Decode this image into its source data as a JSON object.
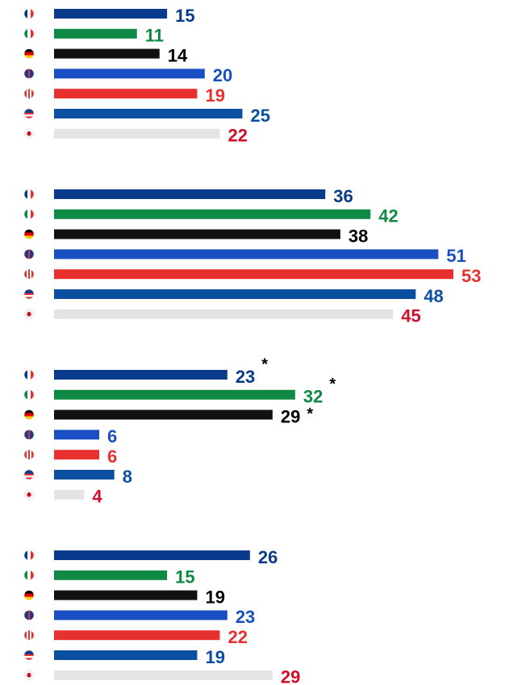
{
  "chart_data": [
    {
      "type": "bar",
      "categories": [
        null,
        null,
        null,
        null,
        null,
        null,
        null
      ],
      "values": [
        15,
        11,
        14,
        20,
        19,
        25,
        22
      ],
      "colors": [
        "#0a3a8c",
        "#0e8a45",
        "#111111",
        "#1a4fc4",
        "#e8302f",
        "#0b4fa0",
        "#e4e4e4"
      ],
      "label_colors": [
        "#0a3a8c",
        "#0e8a45",
        "#000000",
        "#1a4fc4",
        "#e8302f",
        "#0b4fa0",
        "#d0102a"
      ]
    },
    {
      "type": "bar",
      "categories": [
        null,
        null,
        null,
        null,
        null,
        null,
        null
      ],
      "values": [
        36,
        42,
        38,
        51,
        53,
        48,
        45
      ],
      "colors": [
        "#0a3a8c",
        "#0e8a45",
        "#111111",
        "#1a4fc4",
        "#e8302f",
        "#0b4fa0",
        "#e4e4e4"
      ],
      "label_colors": [
        "#0a3a8c",
        "#0e8a45",
        "#000000",
        "#1a4fc4",
        "#e8302f",
        "#0b4fa0",
        "#d0102a"
      ]
    },
    {
      "type": "bar",
      "categories": [
        null,
        null,
        null,
        null,
        null,
        null,
        null
      ],
      "values": [
        23,
        32,
        29,
        6,
        6,
        8,
        4
      ],
      "colors": [
        "#0a3a8c",
        "#0e8a45",
        "#111111",
        "#1a4fc4",
        "#e8302f",
        "#0b4fa0",
        "#e4e4e4"
      ],
      "label_colors": [
        "#0a3a8c",
        "#0e8a45",
        "#000000",
        "#1a4fc4",
        "#e8302f",
        "#0b4fa0",
        "#d0102a"
      ],
      "annotations": [
        {
          "category": 0,
          "text": "*"
        },
        {
          "category": 1,
          "text": "*"
        },
        {
          "category": 2,
          "text": "*"
        }
      ]
    },
    {
      "type": "bar",
      "categories": [
        null,
        null,
        null,
        null,
        null,
        null,
        null
      ],
      "values": [
        26,
        15,
        19,
        23,
        22,
        19,
        29
      ],
      "colors": [
        "#0a3a8c",
        "#0e8a45",
        "#111111",
        "#1a4fc4",
        "#e8302f",
        "#0b4fa0",
        "#e4e4e4"
      ],
      "label_colors": [
        "#0a3a8c",
        "#0e8a45",
        "#000000",
        "#1a4fc4",
        "#e8302f",
        "#0b4fa0",
        "#d0102a"
      ]
    }
  ]
}
